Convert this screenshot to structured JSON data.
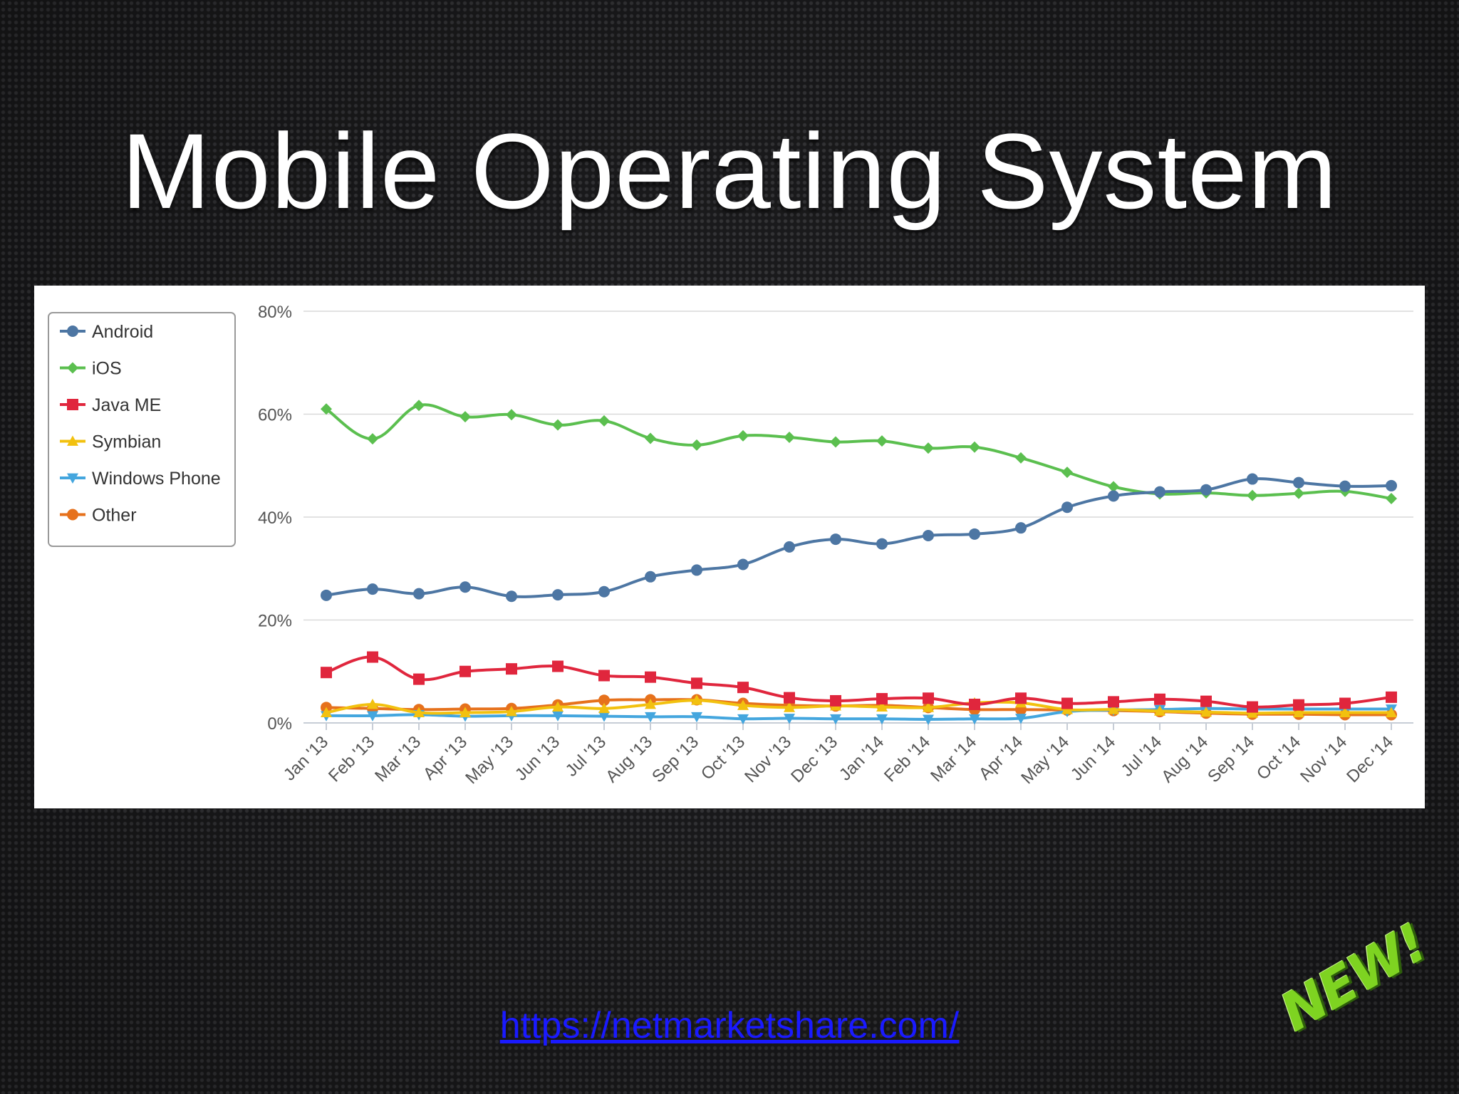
{
  "slide": {
    "title": "Mobile Operating System",
    "link": "https://netmarketshare.com/",
    "badge": "NEW!"
  },
  "colors": {
    "Android": "#4d76a3",
    "iOS": "#5bbf4f",
    "Java ME": "#e0263d",
    "Symbian": "#f2c10f",
    "Windows Phone": "#44a6de",
    "Other": "#e6711c"
  },
  "chart_data": {
    "type": "line",
    "title": "",
    "xlabel": "",
    "ylabel": "",
    "ylim": [
      0,
      80
    ],
    "yticks": [
      "0%",
      "20%",
      "40%",
      "60%",
      "80%"
    ],
    "grid": true,
    "legend_position": "top-left",
    "categories": [
      "Jan '13",
      "Feb '13",
      "Mar '13",
      "Apr '13",
      "May '13",
      "Jun '13",
      "Jul '13",
      "Aug '13",
      "Sep '13",
      "Oct '13",
      "Nov '13",
      "Dec '13",
      "Jan '14",
      "Feb '14",
      "Mar '14",
      "Apr '14",
      "May '14",
      "Jun '14",
      "Jul '14",
      "Aug '14",
      "Sep '14",
      "Oct '14",
      "Nov '14",
      "Dec '14"
    ],
    "series": [
      {
        "name": "Android",
        "marker": "circle",
        "values": [
          24.8,
          26.0,
          25.1,
          26.4,
          24.6,
          24.9,
          25.5,
          28.4,
          29.7,
          30.8,
          34.2,
          35.7,
          34.8,
          36.4,
          36.7,
          37.9,
          41.9,
          44.1,
          44.9,
          45.3,
          47.4,
          46.7,
          46.0,
          46.1
        ]
      },
      {
        "name": "iOS",
        "marker": "diamond",
        "values": [
          61.0,
          55.2,
          61.7,
          59.5,
          59.9,
          57.9,
          58.7,
          55.3,
          54.0,
          55.8,
          55.5,
          54.6,
          54.8,
          53.4,
          53.6,
          51.5,
          48.7,
          45.9,
          44.5,
          44.7,
          44.2,
          44.6,
          45.0,
          43.6
        ]
      },
      {
        "name": "Java ME",
        "marker": "square",
        "values": [
          9.8,
          12.8,
          8.5,
          10.0,
          10.5,
          11.0,
          9.2,
          8.9,
          7.7,
          6.9,
          4.9,
          4.3,
          4.7,
          4.8,
          3.6,
          4.8,
          3.8,
          4.1,
          4.6,
          4.2,
          3.1,
          3.5,
          3.8,
          5.0
        ]
      },
      {
        "name": "Symbian",
        "marker": "triangle-up",
        "values": [
          2.0,
          3.6,
          2.0,
          2.0,
          2.2,
          3.1,
          2.8,
          3.6,
          4.4,
          3.4,
          3.0,
          3.3,
          3.1,
          3.0,
          3.9,
          3.9,
          2.6,
          2.6,
          2.3,
          2.1,
          1.9,
          2.0,
          2.0,
          2.0
        ]
      },
      {
        "name": "Windows Phone",
        "marker": "triangle-down",
        "values": [
          1.4,
          1.4,
          1.6,
          1.3,
          1.4,
          1.4,
          1.3,
          1.2,
          1.2,
          0.8,
          0.9,
          0.8,
          0.8,
          0.7,
          0.8,
          0.9,
          2.2,
          2.5,
          2.6,
          2.8,
          2.7,
          2.7,
          2.7,
          2.7
        ]
      },
      {
        "name": "Other",
        "marker": "circle",
        "values": [
          3.0,
          2.8,
          2.6,
          2.7,
          2.8,
          3.5,
          4.4,
          4.5,
          4.5,
          3.8,
          3.4,
          3.3,
          3.4,
          3.0,
          2.6,
          2.6,
          2.5,
          2.4,
          2.2,
          1.9,
          1.7,
          1.7,
          1.6,
          1.6
        ]
      }
    ]
  }
}
